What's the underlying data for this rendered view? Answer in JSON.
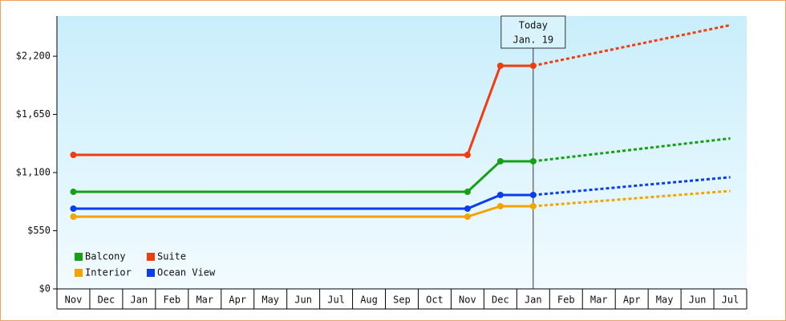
{
  "chart_data": {
    "type": "line",
    "categories": [
      "Nov",
      "Dec",
      "Jan",
      "Feb",
      "Mar",
      "Apr",
      "May",
      "Jun",
      "Jul",
      "Aug",
      "Sep",
      "Oct",
      "Nov",
      "Dec",
      "Jan",
      "Feb",
      "Mar",
      "Apr",
      "May",
      "Jun",
      "Jul"
    ],
    "series": [
      {
        "name": "Balcony",
        "color": "#16a016",
        "values": [
          918,
          918,
          918,
          918,
          918,
          918,
          918,
          918,
          918,
          918,
          918,
          918,
          918,
          1207,
          1207,
          null,
          null,
          null,
          null,
          null,
          null
        ],
        "forecast": [
          null,
          null,
          null,
          null,
          null,
          null,
          null,
          null,
          null,
          null,
          null,
          null,
          null,
          null,
          1207,
          1243,
          1279,
          1315,
          1351,
          1387,
          1423
        ]
      },
      {
        "name": "Suite",
        "color": "#f03c10",
        "values": [
          1267,
          1267,
          1267,
          1267,
          1267,
          1267,
          1267,
          1267,
          1267,
          1267,
          1267,
          1267,
          1267,
          2110,
          2110,
          null,
          null,
          null,
          null,
          null,
          null
        ],
        "forecast": [
          null,
          null,
          null,
          null,
          null,
          null,
          null,
          null,
          null,
          null,
          null,
          null,
          null,
          null,
          2110,
          2174,
          2238,
          2302,
          2366,
          2430,
          2494
        ]
      },
      {
        "name": "Interior",
        "color": "#f5a300",
        "values": [
          683,
          683,
          683,
          683,
          683,
          683,
          683,
          683,
          683,
          683,
          683,
          683,
          683,
          782,
          782,
          null,
          null,
          null,
          null,
          null,
          null
        ],
        "forecast": [
          null,
          null,
          null,
          null,
          null,
          null,
          null,
          null,
          null,
          null,
          null,
          null,
          null,
          null,
          782,
          806,
          830,
          854,
          878,
          902,
          926
        ]
      },
      {
        "name": "Ocean View",
        "color": "#0a3cf0",
        "values": [
          759,
          759,
          759,
          759,
          759,
          759,
          759,
          759,
          759,
          759,
          759,
          759,
          759,
          888,
          888,
          null,
          null,
          null,
          null,
          null,
          null
        ],
        "forecast": [
          null,
          null,
          null,
          null,
          null,
          null,
          null,
          null,
          null,
          null,
          null,
          null,
          null,
          null,
          888,
          916,
          944,
          972,
          1000,
          1028,
          1056
        ]
      }
    ],
    "annotation": {
      "label": "Today",
      "date": "Jan. 19"
    },
    "ylim": [
      0,
      2580
    ],
    "yticks": [
      {
        "value": 0,
        "label": "$0"
      },
      {
        "value": 550,
        "label": "$550"
      },
      {
        "value": 1100,
        "label": "$1,100"
      },
      {
        "value": 1650,
        "label": "$1,650"
      },
      {
        "value": 2200,
        "label": "$2,200"
      }
    ],
    "legend": "bottom-left"
  }
}
